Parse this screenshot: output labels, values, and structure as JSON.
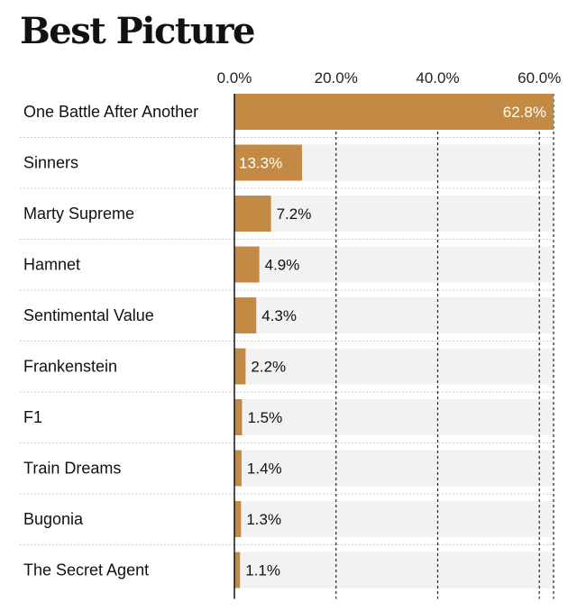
{
  "chart_data": {
    "type": "bar",
    "orientation": "horizontal",
    "title": "Best Picture",
    "xlabel": "",
    "ylabel": "",
    "xlim": [
      0,
      62.8
    ],
    "ticks": [
      {
        "value": 0,
        "label": "0.0%"
      },
      {
        "value": 20,
        "label": "20.0%"
      },
      {
        "value": 40,
        "label": "40.0%"
      },
      {
        "value": 60,
        "label": "60.0%"
      }
    ],
    "categories": [
      "One Battle After Another",
      "Sinners",
      "Marty Supreme",
      "Hamnet",
      "Sentimental Value",
      "Frankenstein",
      "F1",
      "Train Dreams",
      "Bugonia",
      "The Secret Agent"
    ],
    "values": [
      62.8,
      13.3,
      7.2,
      4.9,
      4.3,
      2.2,
      1.5,
      1.4,
      1.3,
      1.1
    ],
    "value_labels": [
      "62.8%",
      "13.3%",
      "7.2%",
      "4.9%",
      "4.3%",
      "2.2%",
      "1.5%",
      "1.4%",
      "1.3%",
      "1.1%"
    ],
    "colors": {
      "bar": "#C28A45",
      "track": "#F2F2F2",
      "gridline": "#222222",
      "separator": "#CCCCCC",
      "inside_label": "#FFFFFF",
      "outside_label": "#111111"
    }
  }
}
